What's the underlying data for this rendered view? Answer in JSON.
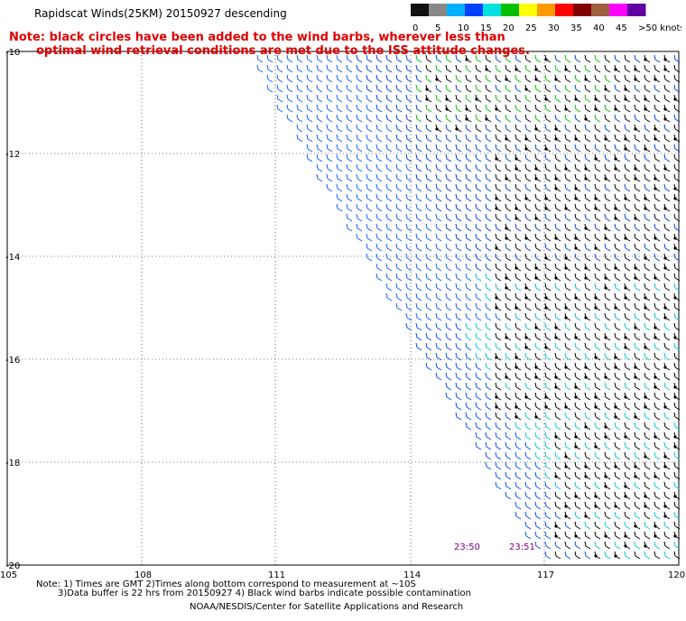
{
  "title": "Rapidscat Winds(25KM) 20150927 descending",
  "note_line1": "Note: black circles have been added to the wind barbs, wherever less than",
  "note_line2": "optimal wind retrieval conditions are met due to the ISS attitude changes.",
  "legend": {
    "labels": [
      "0",
      "5",
      "10",
      "15",
      "20",
      "25",
      "30",
      "35",
      "40",
      "45",
      ">50 knots"
    ],
    "colors": [
      "#111111",
      "#888888",
      "#00b0ff",
      "#0040ff",
      "#00e0e0",
      "#00c000",
      "#ffff00",
      "#ff9900",
      "#ff0000",
      "#800000",
      "#a06040",
      "#ff00ff",
      "#6000a0"
    ]
  },
  "lat_labels": [
    "-10",
    "-12",
    "-14",
    "-16",
    "-18",
    "-20"
  ],
  "lon_labels": [
    "105",
    "108",
    "111",
    "114",
    "117",
    "120"
  ],
  "times": [
    "23:50",
    "23:51"
  ],
  "footer": {
    "line1": "Note: 1) Times are GMT 2)Times along bottom correspond to measurement at ~10S",
    "line2": "3)Data buffer is 22 hrs from 20150927 4) Black wind barbs indicate possible contamination",
    "line3": "NOAA/NESDIS/Center for Satellite Applications and Research"
  }
}
